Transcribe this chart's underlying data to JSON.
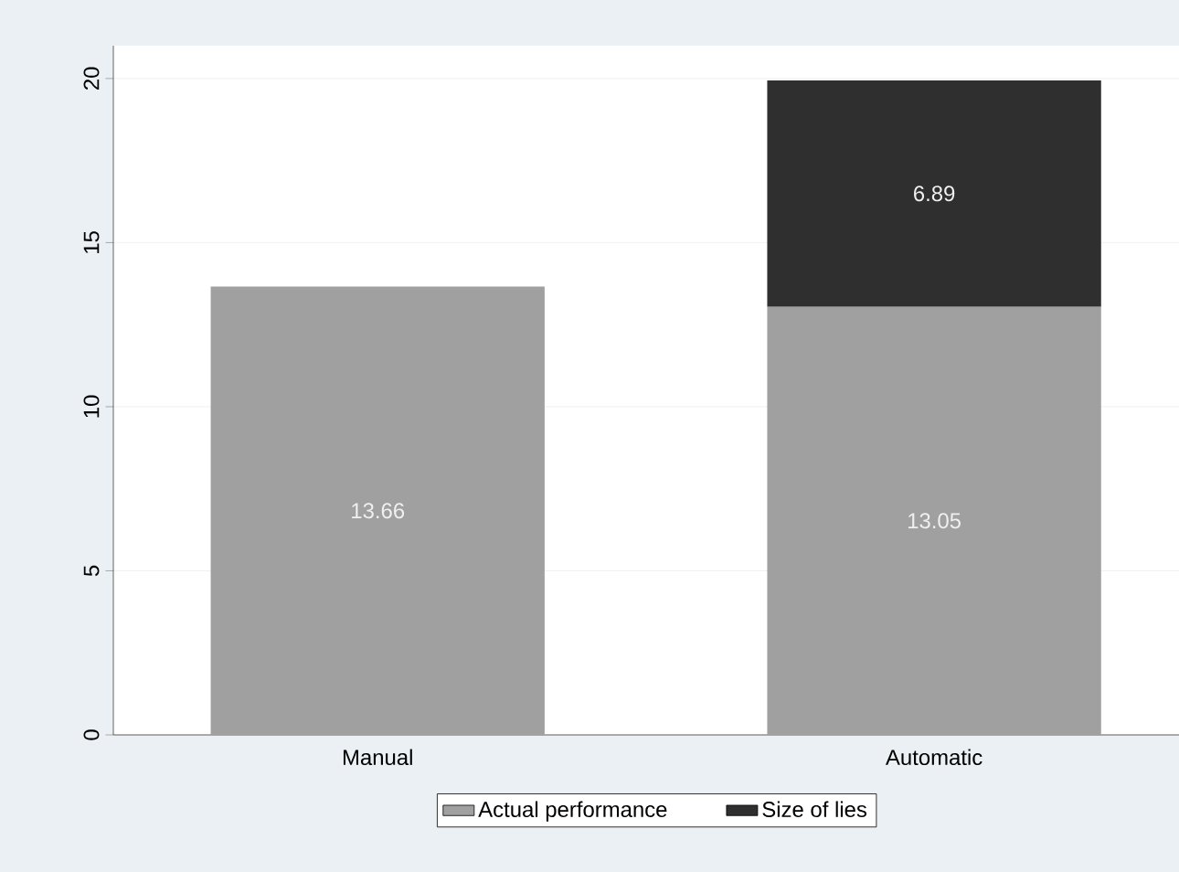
{
  "chart_data": {
    "type": "bar",
    "stacked": true,
    "categories": [
      "Manual",
      "Automatic"
    ],
    "series": [
      {
        "name": "Actual performance",
        "color": "#a0a0a0",
        "values": [
          13.66,
          13.05
        ]
      },
      {
        "name": "Size of lies",
        "color": "#2f2f2f",
        "values": [
          null,
          6.89
        ]
      }
    ],
    "ylim": [
      0,
      21
    ],
    "yticks": [
      0,
      5,
      10,
      15,
      20
    ],
    "grid": "y",
    "legend": "bottom",
    "data_labels": true
  }
}
